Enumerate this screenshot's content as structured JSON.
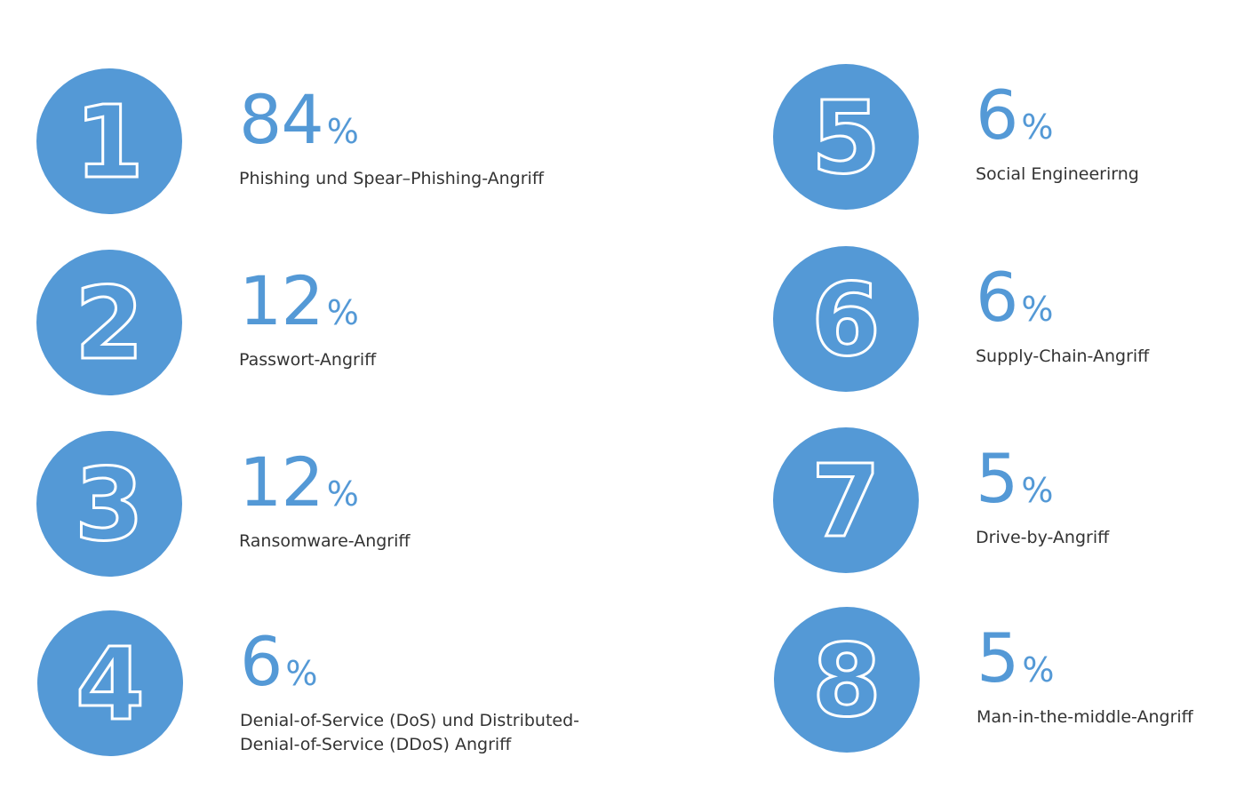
{
  "chart_data": {
    "type": "table",
    "title": "",
    "items": [
      {
        "rank": "1",
        "value": 84,
        "value_text": "84",
        "unit": "%",
        "label": "Phishing und Spear–Phishing-Angriff"
      },
      {
        "rank": "2",
        "value": 12,
        "value_text": "12",
        "unit": "%",
        "label": "Passwort-Angriff"
      },
      {
        "rank": "3",
        "value": 12,
        "value_text": "12",
        "unit": "%",
        "label": "Ransomware-Angriff"
      },
      {
        "rank": "4",
        "value": 6,
        "value_text": "6",
        "unit": "%",
        "label": "Denial-of-Service (DoS) und Distributed-Denial-of-Service (DDoS) Angriff"
      },
      {
        "rank": "5",
        "value": 6,
        "value_text": "6",
        "unit": "%",
        "label": "Social Engineerirng"
      },
      {
        "rank": "6",
        "value": 6,
        "value_text": "6",
        "unit": "%",
        "label": "Supply-Chain-Angriff"
      },
      {
        "rank": "7",
        "value": 5,
        "value_text": "5",
        "unit": "%",
        "label": "Drive-by-Angriff"
      },
      {
        "rank": "8",
        "value": 5,
        "value_text": "5",
        "unit": "%",
        "label": "Man-in-the-middle-Angriff"
      }
    ]
  },
  "colors": {
    "accent": "#5499d6",
    "text": "#333333",
    "background": "#ffffff"
  }
}
